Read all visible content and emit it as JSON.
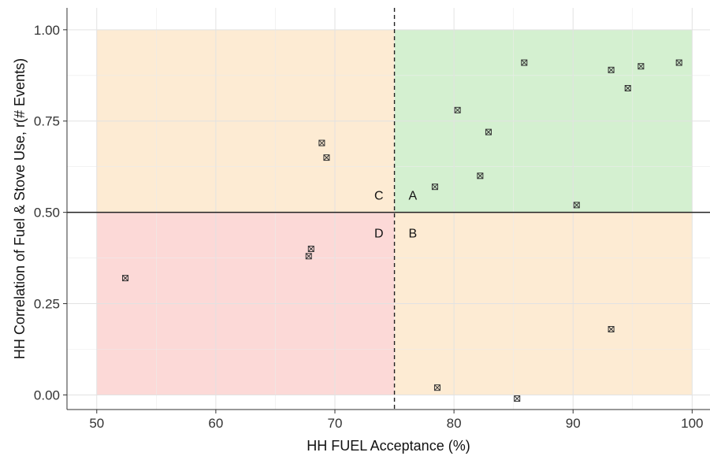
{
  "chart_data": {
    "type": "scatter",
    "title": "",
    "xlabel": "HH FUEL Acceptance (%)",
    "ylabel": "HH Correlation of Fuel & Stove Use, r(# Events)",
    "xlim": [
      47.5,
      101.5
    ],
    "ylim": [
      -0.04,
      1.06
    ],
    "x_ticks": [
      50,
      60,
      70,
      80,
      90,
      100
    ],
    "y_ticks": [
      0.0,
      0.25,
      0.5,
      0.75,
      1.0
    ],
    "x_tick_labels": [
      "50",
      "60",
      "70",
      "80",
      "90",
      "100"
    ],
    "y_tick_labels": [
      "0.00",
      "0.25",
      "0.50",
      "0.75",
      "1.00"
    ],
    "grid": true,
    "thresholds": {
      "x": 75,
      "y": 0.5
    },
    "quadrants": [
      {
        "label": "A",
        "x": [
          75,
          100
        ],
        "y": [
          0.5,
          1.0
        ],
        "color": "#d4f0d0"
      },
      {
        "label": "B",
        "x": [
          75,
          100
        ],
        "y": [
          0.0,
          0.5
        ],
        "color": "#fdebd3"
      },
      {
        "label": "C",
        "x": [
          50,
          75
        ],
        "y": [
          0.5,
          1.0
        ],
        "color": "#fdebd3"
      },
      {
        "label": "D",
        "x": [
          50,
          75
        ],
        "y": [
          0.0,
          0.5
        ],
        "color": "#fcd9d7"
      }
    ],
    "points": [
      {
        "x": 52.4,
        "y": 0.32
      },
      {
        "x": 67.8,
        "y": 0.38
      },
      {
        "x": 68.0,
        "y": 0.4
      },
      {
        "x": 68.9,
        "y": 0.69
      },
      {
        "x": 69.3,
        "y": 0.65
      },
      {
        "x": 78.4,
        "y": 0.57
      },
      {
        "x": 78.6,
        "y": 0.02
      },
      {
        "x": 80.3,
        "y": 0.78
      },
      {
        "x": 82.2,
        "y": 0.6
      },
      {
        "x": 82.9,
        "y": 0.72
      },
      {
        "x": 85.3,
        "y": -0.01
      },
      {
        "x": 85.9,
        "y": 0.91
      },
      {
        "x": 90.3,
        "y": 0.52
      },
      {
        "x": 93.2,
        "y": 0.89
      },
      {
        "x": 93.2,
        "y": 0.18
      },
      {
        "x": 94.6,
        "y": 0.84
      },
      {
        "x": 95.7,
        "y": 0.9
      },
      {
        "x": 98.9,
        "y": 0.91
      }
    ]
  }
}
